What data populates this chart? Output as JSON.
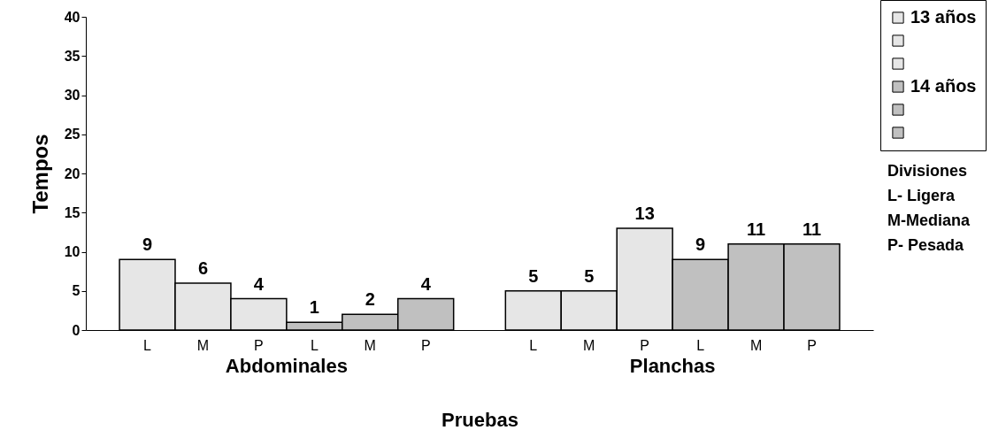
{
  "chart_data": {
    "type": "bar",
    "xlabel": "Pruebas",
    "ylabel": "Tempos",
    "categories": [
      "Abdominales",
      "Planchas"
    ],
    "series": [
      {
        "name": "13 años",
        "color": "#e6e6e6",
        "values": [
          9,
          5
        ]
      },
      {
        "color": "#e6e6e6",
        "values": [
          6,
          5
        ]
      },
      {
        "color": "#e6e6e6",
        "values": [
          4,
          13
        ]
      },
      {
        "name": "14 años",
        "color": "#c0c0c0",
        "values": [
          1,
          9
        ]
      },
      {
        "color": "#c0c0c0",
        "values": [
          2,
          11
        ]
      },
      {
        "color": "#c0c0c0",
        "values": [
          4,
          11
        ]
      }
    ],
    "ylim": [
      0,
      40
    ],
    "yticks": [
      0,
      5,
      10,
      15,
      20,
      25,
      30,
      35,
      40
    ],
    "data_labels": true,
    "grid": false,
    "legend": "top right",
    "annotations": [
      "L",
      "M",
      "P",
      "L",
      "M",
      "P",
      "L",
      "M",
      "P",
      "L",
      "M",
      "P",
      "Divisiones",
      "L- Ligera",
      "M-Mediana",
      "P- Pesada"
    ]
  }
}
